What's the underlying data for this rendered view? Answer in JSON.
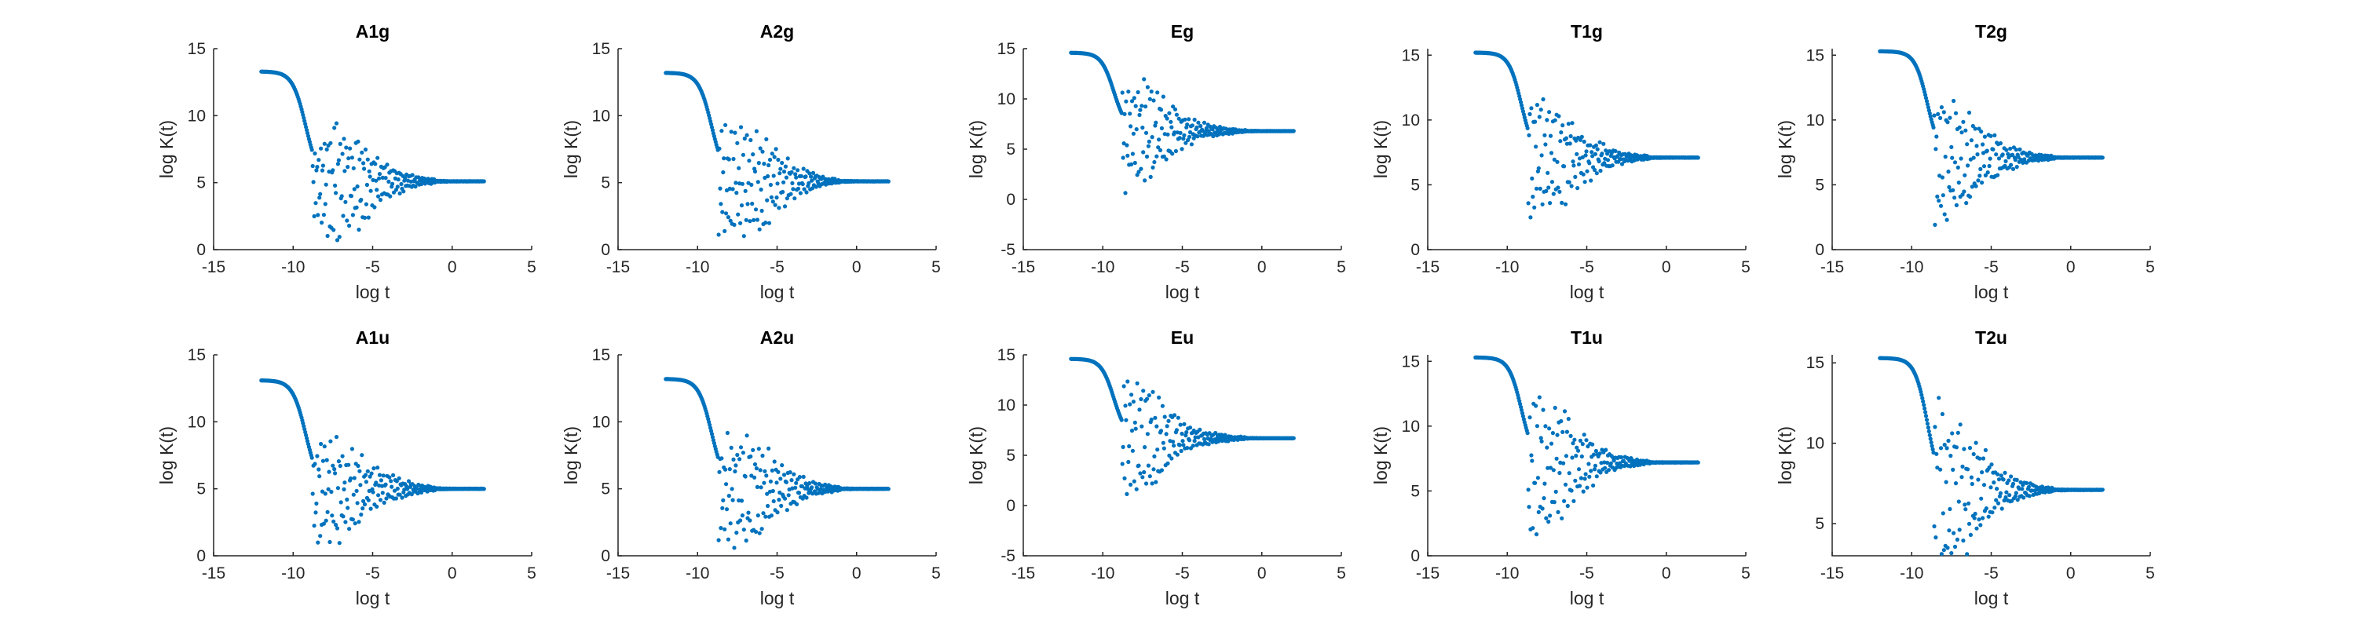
{
  "colors": {
    "series": "#0072BD"
  },
  "chart_data": [
    {
      "type": "scatter",
      "title": "A1g",
      "xlabel": "log t",
      "ylabel": "log K(t)",
      "xlim": [
        -15,
        5
      ],
      "ylim": [
        0,
        15
      ],
      "xticks": [
        "-15",
        "-10",
        "-5",
        "0",
        "5"
      ],
      "yticks": [
        "0",
        "5",
        "10",
        "15"
      ],
      "curve": {
        "plateau": 13.3,
        "drop_center": -9.2,
        "drop_width": 0.42,
        "tail_start": -8.8,
        "tail_end": 2,
        "tail_value": 5.1,
        "spread": [
          [
            -8.5,
            3.5
          ],
          [
            -7,
            4.2
          ],
          [
            -6,
            3.6
          ],
          [
            -5,
            2.2
          ],
          [
            -4,
            1.3
          ],
          [
            -3,
            0.7
          ],
          [
            -2,
            0.3
          ],
          [
            -1,
            0.12
          ],
          [
            0,
            0.05
          ],
          [
            2,
            0.03
          ]
        ],
        "seed": 11
      }
    },
    {
      "type": "scatter",
      "title": "A2g",
      "xlabel": "log t",
      "ylabel": "log K(t)",
      "xlim": [
        -15,
        5
      ],
      "ylim": [
        0,
        15
      ],
      "xticks": [
        "-15",
        "-10",
        "-5",
        "0",
        "5"
      ],
      "yticks": [
        "0",
        "5",
        "10",
        "15"
      ],
      "curve": {
        "plateau": 13.2,
        "drop_center": -9.1,
        "drop_width": 0.42,
        "tail_start": -8.7,
        "tail_end": 2,
        "tail_value": 5.1,
        "spread": [
          [
            -8.5,
            4.0
          ],
          [
            -7,
            3.8
          ],
          [
            -6,
            3.2
          ],
          [
            -5,
            2.3
          ],
          [
            -4,
            1.2
          ],
          [
            -3,
            0.7
          ],
          [
            -2,
            0.3
          ],
          [
            -1,
            0.12
          ],
          [
            0,
            0.05
          ],
          [
            2,
            0.03
          ]
        ],
        "seed": 23
      }
    },
    {
      "type": "scatter",
      "title": "Eg",
      "xlabel": "log t",
      "ylabel": "log K(t)",
      "xlim": [
        -15,
        5
      ],
      "ylim": [
        -5,
        15
      ],
      "xticks": [
        "-15",
        "-10",
        "-5",
        "0",
        "5"
      ],
      "yticks": [
        "-5",
        "0",
        "5",
        "10",
        "15"
      ],
      "curve": {
        "plateau": 14.6,
        "drop_center": -9.3,
        "drop_width": 0.4,
        "tail_start": -8.8,
        "tail_end": 2,
        "tail_value": 6.8,
        "spread": [
          [
            -8.5,
            5.5
          ],
          [
            -7,
            4.5
          ],
          [
            -6,
            3.0
          ],
          [
            -5,
            1.6
          ],
          [
            -4,
            0.9
          ],
          [
            -3,
            0.5
          ],
          [
            -2,
            0.25
          ],
          [
            -1,
            0.1
          ],
          [
            0,
            0.05
          ],
          [
            2,
            0.03
          ]
        ],
        "seed": 37
      }
    },
    {
      "type": "scatter",
      "title": "T1g",
      "xlabel": "log t",
      "ylabel": "log K(t)",
      "xlim": [
        -15,
        5
      ],
      "ylim": [
        0,
        15.5
      ],
      "xticks": [
        "-15",
        "-10",
        "-5",
        "0",
        "5"
      ],
      "yticks": [
        "0",
        "5",
        "10",
        "15"
      ],
      "curve": {
        "plateau": 15.2,
        "drop_center": -9.1,
        "drop_width": 0.4,
        "tail_start": -8.7,
        "tail_end": 2,
        "tail_value": 7.1,
        "spread": [
          [
            -8.5,
            4.5
          ],
          [
            -7,
            4.0
          ],
          [
            -6,
            2.8
          ],
          [
            -5,
            1.8
          ],
          [
            -4,
            1.0
          ],
          [
            -3,
            0.5
          ],
          [
            -2,
            0.25
          ],
          [
            -1,
            0.1
          ],
          [
            0,
            0.05
          ],
          [
            2,
            0.03
          ]
        ],
        "seed": 41
      }
    },
    {
      "type": "scatter",
      "title": "T2g",
      "xlabel": "log t",
      "ylabel": "log K(t)",
      "xlim": [
        -15,
        5
      ],
      "ylim": [
        0,
        15.5
      ],
      "xticks": [
        "-15",
        "-10",
        "-5",
        "0",
        "5"
      ],
      "yticks": [
        "0",
        "5",
        "10",
        "15"
      ],
      "curve": {
        "plateau": 15.3,
        "drop_center": -9.0,
        "drop_width": 0.4,
        "tail_start": -8.6,
        "tail_end": 2,
        "tail_value": 7.1,
        "spread": [
          [
            -8.5,
            5.0
          ],
          [
            -7,
            4.2
          ],
          [
            -6,
            3.0
          ],
          [
            -5,
            2.0
          ],
          [
            -4,
            1.0
          ],
          [
            -3,
            0.5
          ],
          [
            -2,
            0.25
          ],
          [
            -1,
            0.1
          ],
          [
            0,
            0.05
          ],
          [
            2,
            0.03
          ]
        ],
        "seed": 53
      }
    },
    {
      "type": "scatter",
      "title": "A1u",
      "xlabel": "log t",
      "ylabel": "log K(t)",
      "xlim": [
        -15,
        5
      ],
      "ylim": [
        0,
        15
      ],
      "xticks": [
        "-15",
        "-10",
        "-5",
        "0",
        "5"
      ],
      "yticks": [
        "0",
        "5",
        "10",
        "15"
      ],
      "curve": {
        "plateau": 13.1,
        "drop_center": -9.2,
        "drop_width": 0.42,
        "tail_start": -8.8,
        "tail_end": 2,
        "tail_value": 5.0,
        "spread": [
          [
            -8.5,
            3.8
          ],
          [
            -7,
            3.5
          ],
          [
            -6,
            2.6
          ],
          [
            -5,
            1.6
          ],
          [
            -4,
            1.0
          ],
          [
            -3,
            0.6
          ],
          [
            -2,
            0.3
          ],
          [
            -1,
            0.12
          ],
          [
            0,
            0.05
          ],
          [
            2,
            0.03
          ]
        ],
        "seed": 67
      }
    },
    {
      "type": "scatter",
      "title": "A2u",
      "xlabel": "log t",
      "ylabel": "log K(t)",
      "xlim": [
        -15,
        5
      ],
      "ylim": [
        0,
        15
      ],
      "xticks": [
        "-15",
        "-10",
        "-5",
        "0",
        "5"
      ],
      "yticks": [
        "0",
        "5",
        "10",
        "15"
      ],
      "curve": {
        "plateau": 13.2,
        "drop_center": -9.1,
        "drop_width": 0.42,
        "tail_start": -8.7,
        "tail_end": 2,
        "tail_value": 5.0,
        "spread": [
          [
            -8.5,
            4.2
          ],
          [
            -7,
            3.8
          ],
          [
            -6,
            3.2
          ],
          [
            -5,
            2.2
          ],
          [
            -4,
            1.2
          ],
          [
            -3,
            0.6
          ],
          [
            -2,
            0.3
          ],
          [
            -1,
            0.12
          ],
          [
            0,
            0.05
          ],
          [
            2,
            0.03
          ]
        ],
        "seed": 79
      }
    },
    {
      "type": "scatter",
      "title": "Eu",
      "xlabel": "log t",
      "ylabel": "log K(t)",
      "xlim": [
        -15,
        5
      ],
      "ylim": [
        -5,
        15
      ],
      "xticks": [
        "-15",
        "-10",
        "-5",
        "0",
        "5"
      ],
      "yticks": [
        "-5",
        "0",
        "5",
        "10",
        "15"
      ],
      "curve": {
        "plateau": 14.6,
        "drop_center": -9.3,
        "drop_width": 0.4,
        "tail_start": -8.8,
        "tail_end": 2,
        "tail_value": 6.7,
        "spread": [
          [
            -8.5,
            6.0
          ],
          [
            -7,
            4.5
          ],
          [
            -6,
            3.0
          ],
          [
            -5,
            1.6
          ],
          [
            -4,
            0.9
          ],
          [
            -3,
            0.5
          ],
          [
            -2,
            0.25
          ],
          [
            -1,
            0.1
          ],
          [
            0,
            0.05
          ],
          [
            2,
            0.03
          ]
        ],
        "seed": 83
      }
    },
    {
      "type": "scatter",
      "title": "T1u",
      "xlabel": "log t",
      "ylabel": "log K(t)",
      "xlim": [
        -15,
        5
      ],
      "ylim": [
        0,
        15.5
      ],
      "xticks": [
        "-15",
        "-10",
        "-5",
        "0",
        "5"
      ],
      "yticks": [
        "0",
        "5",
        "10",
        "15"
      ],
      "curve": {
        "plateau": 15.3,
        "drop_center": -9.1,
        "drop_width": 0.4,
        "tail_start": -8.7,
        "tail_end": 2,
        "tail_value": 7.2,
        "spread": [
          [
            -8.5,
            5.5
          ],
          [
            -7,
            4.5
          ],
          [
            -6,
            3.2
          ],
          [
            -5,
            2.0
          ],
          [
            -4,
            1.0
          ],
          [
            -3,
            0.5
          ],
          [
            -2,
            0.25
          ],
          [
            -1,
            0.1
          ],
          [
            0,
            0.05
          ],
          [
            2,
            0.03
          ]
        ],
        "seed": 97
      }
    },
    {
      "type": "scatter",
      "title": "T2u",
      "xlabel": "log t",
      "ylabel": "log K(t)",
      "xlim": [
        -15,
        5
      ],
      "ylim": [
        3,
        15.5
      ],
      "xticks": [
        "-15",
        "-10",
        "-5",
        "0",
        "5"
      ],
      "yticks": [
        "5",
        "10",
        "15"
      ],
      "curve": {
        "plateau": 15.3,
        "drop_center": -9.0,
        "drop_width": 0.4,
        "tail_start": -8.6,
        "tail_end": 2,
        "tail_value": 7.1,
        "spread": [
          [
            -8.5,
            5.5
          ],
          [
            -7,
            4.2
          ],
          [
            -6,
            3.0
          ],
          [
            -5,
            2.0
          ],
          [
            -4,
            1.0
          ],
          [
            -3,
            0.5
          ],
          [
            -2,
            0.25
          ],
          [
            -1,
            0.1
          ],
          [
            0,
            0.05
          ],
          [
            2,
            0.03
          ]
        ],
        "seed": 101
      }
    }
  ]
}
